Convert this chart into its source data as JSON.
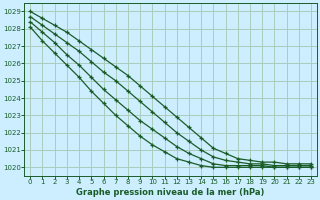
{
  "title": "Graphe pression niveau de la mer (hPa)",
  "bg_color": "#cceeff",
  "grid_color": "#aaccbb",
  "line_color": "#1a5c28",
  "xlabel_color": "#1a5c28",
  "ytick_color": "#1a5c28",
  "xtick_color": "#1a5c28",
  "xlim": [
    -0.5,
    23.5
  ],
  "ylim": [
    1019.5,
    1029.5
  ],
  "yticks": [
    1020,
    1021,
    1022,
    1023,
    1024,
    1025,
    1026,
    1027,
    1028,
    1029
  ],
  "xticks": [
    0,
    1,
    2,
    3,
    4,
    5,
    6,
    7,
    8,
    9,
    10,
    11,
    12,
    13,
    14,
    15,
    16,
    17,
    18,
    19,
    20,
    21,
    22,
    23
  ],
  "series": [
    [
      1029.0,
      1028.6,
      1028.2,
      1027.8,
      1027.3,
      1026.8,
      1026.3,
      1025.8,
      1025.3,
      1024.7,
      1024.1,
      1023.5,
      1022.9,
      1022.3,
      1021.7,
      1021.1,
      1020.8,
      1020.5,
      1020.4,
      1020.3,
      1020.3,
      1020.2,
      1020.2,
      1020.2
    ],
    [
      1028.7,
      1028.2,
      1027.7,
      1027.2,
      1026.7,
      1026.1,
      1025.5,
      1025.0,
      1024.4,
      1023.8,
      1023.2,
      1022.6,
      1022.0,
      1021.5,
      1021.0,
      1020.6,
      1020.4,
      1020.3,
      1020.2,
      1020.2,
      1020.1,
      1020.1,
      1020.1,
      1020.1
    ],
    [
      1028.4,
      1027.8,
      1027.2,
      1026.5,
      1025.9,
      1025.2,
      1024.5,
      1023.9,
      1023.3,
      1022.7,
      1022.2,
      1021.7,
      1021.2,
      1020.8,
      1020.5,
      1020.2,
      1020.1,
      1020.1,
      1020.1,
      1020.1,
      1020.0,
      1020.0,
      1020.0,
      1020.0
    ],
    [
      1028.1,
      1027.3,
      1026.6,
      1025.9,
      1025.2,
      1024.4,
      1023.7,
      1023.0,
      1022.4,
      1021.8,
      1021.3,
      1020.9,
      1020.5,
      1020.3,
      1020.1,
      1020.0,
      1020.0,
      1020.0,
      1020.0,
      1020.0,
      1020.0,
      1020.0,
      1020.0,
      1020.0
    ]
  ]
}
